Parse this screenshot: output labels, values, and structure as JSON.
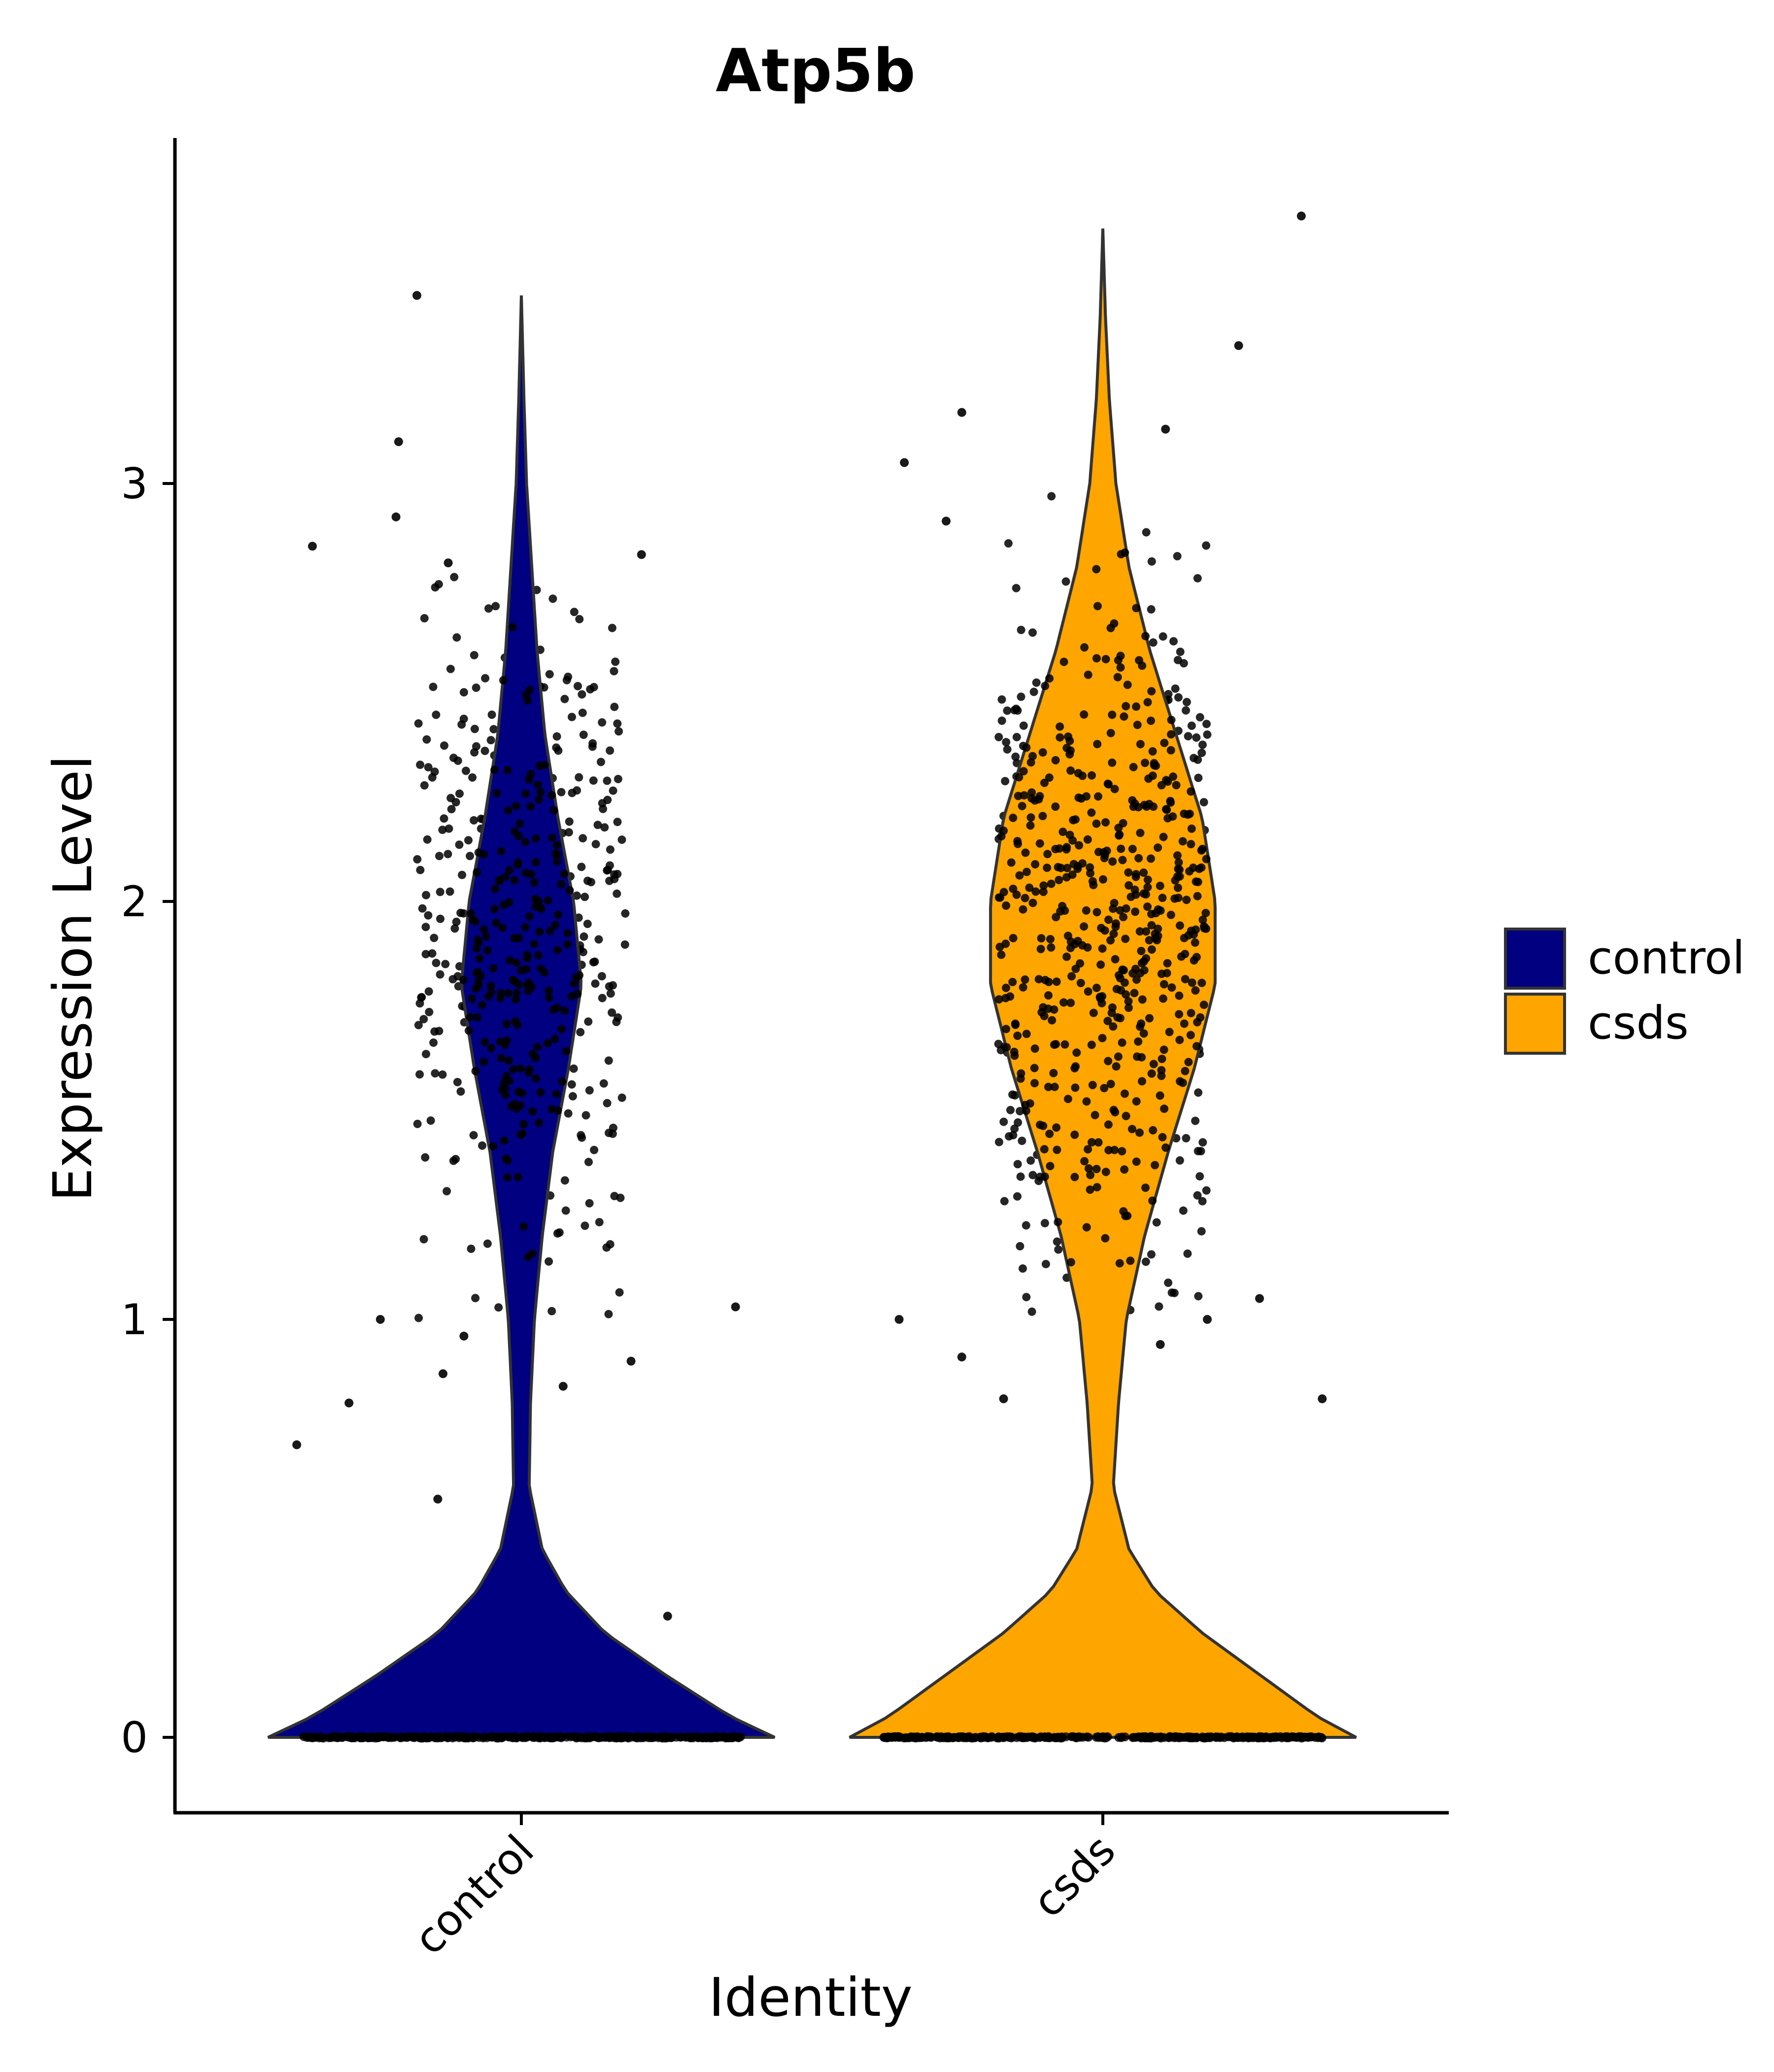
{
  "chart_data": {
    "type": "violin",
    "title": "Atp5b",
    "xlabel": "Identity",
    "ylabel": "Expression Level",
    "ylim": [
      -0.18,
      3.67
    ],
    "yticks": [
      "0",
      "1",
      "2",
      "3"
    ],
    "categories": [
      "control",
      "csds"
    ],
    "legend": {
      "position": "right",
      "entries": [
        "control",
        "csds"
      ]
    },
    "colors": {
      "control": "#000080",
      "csds": "#FFA500",
      "outline": "#333333",
      "points": "#000000"
    },
    "series": [
      {
        "name": "control",
        "max": 3.45,
        "density_profile": [
          {
            "y": 0.0,
            "width": 0.97
          },
          {
            "y": 0.05,
            "width": 0.8
          },
          {
            "y": 0.15,
            "width": 0.55
          },
          {
            "y": 0.25,
            "width": 0.32
          },
          {
            "y": 0.35,
            "width": 0.17
          },
          {
            "y": 0.45,
            "width": 0.08
          },
          {
            "y": 0.6,
            "width": 0.03
          },
          {
            "y": 0.8,
            "width": 0.035
          },
          {
            "y": 1.0,
            "width": 0.05
          },
          {
            "y": 1.2,
            "width": 0.08
          },
          {
            "y": 1.4,
            "width": 0.12
          },
          {
            "y": 1.6,
            "width": 0.18
          },
          {
            "y": 1.8,
            "width": 0.23
          },
          {
            "y": 2.0,
            "width": 0.2
          },
          {
            "y": 2.2,
            "width": 0.14
          },
          {
            "y": 2.4,
            "width": 0.09
          },
          {
            "y": 2.6,
            "width": 0.06
          },
          {
            "y": 2.8,
            "width": 0.04
          },
          {
            "y": 3.0,
            "width": 0.02
          },
          {
            "y": 3.2,
            "width": 0.01
          },
          {
            "y": 3.45,
            "width": 0.0
          }
        ]
      },
      {
        "name": "csds",
        "max": 3.61,
        "density_profile": [
          {
            "y": 0.0,
            "width": 0.97
          },
          {
            "y": 0.05,
            "width": 0.82
          },
          {
            "y": 0.15,
            "width": 0.6
          },
          {
            "y": 0.25,
            "width": 0.38
          },
          {
            "y": 0.35,
            "width": 0.2
          },
          {
            "y": 0.45,
            "width": 0.1
          },
          {
            "y": 0.6,
            "width": 0.04
          },
          {
            "y": 0.8,
            "width": 0.06
          },
          {
            "y": 1.0,
            "width": 0.09
          },
          {
            "y": 1.2,
            "width": 0.16
          },
          {
            "y": 1.4,
            "width": 0.25
          },
          {
            "y": 1.6,
            "width": 0.35
          },
          {
            "y": 1.8,
            "width": 0.43
          },
          {
            "y": 2.0,
            "width": 0.43
          },
          {
            "y": 2.2,
            "width": 0.38
          },
          {
            "y": 2.4,
            "width": 0.28
          },
          {
            "y": 2.6,
            "width": 0.18
          },
          {
            "y": 2.8,
            "width": 0.1
          },
          {
            "y": 3.0,
            "width": 0.05
          },
          {
            "y": 3.2,
            "width": 0.025
          },
          {
            "y": 3.4,
            "width": 0.01
          },
          {
            "y": 3.61,
            "width": 0.0
          }
        ]
      }
    ],
    "points": {
      "control": {
        "outliers": [
          {
            "x": -0.2,
            "y": 3.45
          },
          {
            "x": -0.235,
            "y": 3.1
          },
          {
            "x": -0.24,
            "y": 2.92
          },
          {
            "x": -0.4,
            "y": 2.85
          },
          {
            "x": 0.23,
            "y": 2.83
          },
          {
            "x": -0.14,
            "y": 2.81
          },
          {
            "x": -0.43,
            "y": 0.7
          },
          {
            "x": -0.33,
            "y": 0.8
          },
          {
            "x": -0.16,
            "y": 0.57
          },
          {
            "x": 0.08,
            "y": 0.84
          },
          {
            "x": -0.15,
            "y": 0.87
          },
          {
            "x": 0.21,
            "y": 0.9
          },
          {
            "x": 0.28,
            "y": 0.29
          },
          {
            "x": -0.27,
            "y": 1.0
          },
          {
            "x": -0.11,
            "y": 0.96
          },
          {
            "x": 0.41,
            "y": 1.03
          }
        ],
        "n_cloud": 420,
        "cloud_range": [
          1.0,
          2.8
        ],
        "zeros_x_range": [
          -0.42,
          0.42
        ]
      },
      "csds": {
        "outliers": [
          {
            "x": 0.38,
            "y": 3.64
          },
          {
            "x": 0.26,
            "y": 3.33
          },
          {
            "x": -0.27,
            "y": 3.17
          },
          {
            "x": 0.12,
            "y": 3.13
          },
          {
            "x": -0.38,
            "y": 3.05
          },
          {
            "x": -0.3,
            "y": 2.91
          },
          {
            "x": -0.27,
            "y": 0.91
          },
          {
            "x": -0.19,
            "y": 0.81
          },
          {
            "x": -0.39,
            "y": 1.0
          },
          {
            "x": 0.11,
            "y": 0.94
          },
          {
            "x": 0.42,
            "y": 0.81
          },
          {
            "x": 0.3,
            "y": 1.05
          },
          {
            "x": 0.2,
            "y": 1.0
          }
        ],
        "n_cloud": 600,
        "cloud_range": [
          1.0,
          3.05
        ],
        "zeros_x_range": [
          -0.42,
          0.42
        ]
      }
    }
  }
}
